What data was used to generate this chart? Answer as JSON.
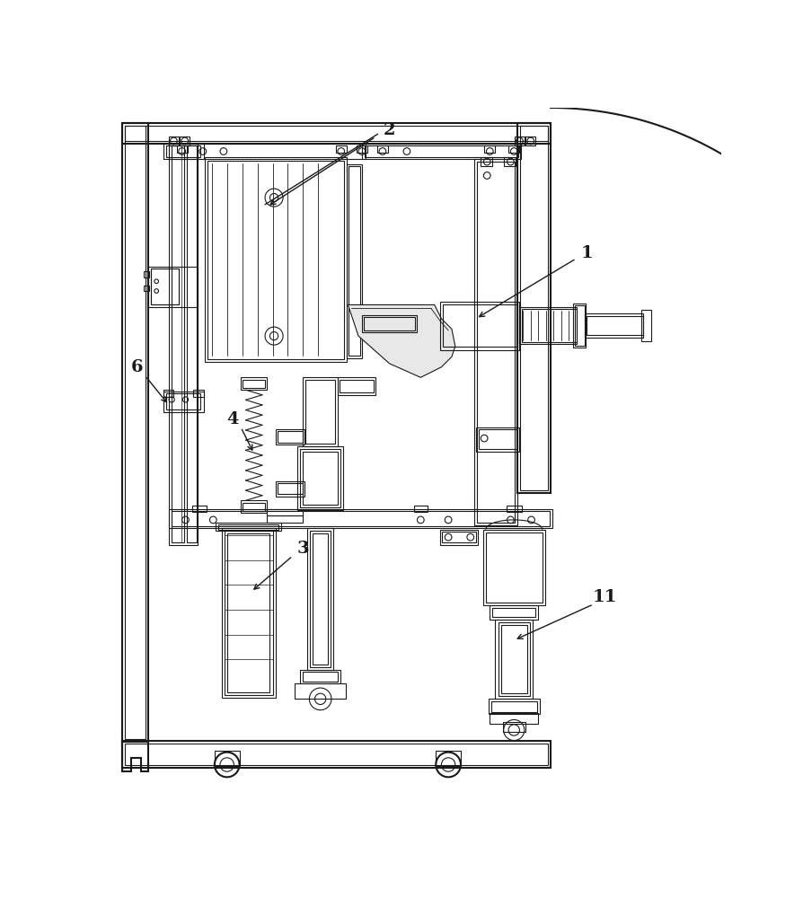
{
  "bg_color": "#ffffff",
  "lc": "#1a1a1a",
  "lw": 0.8,
  "tlw": 1.5
}
